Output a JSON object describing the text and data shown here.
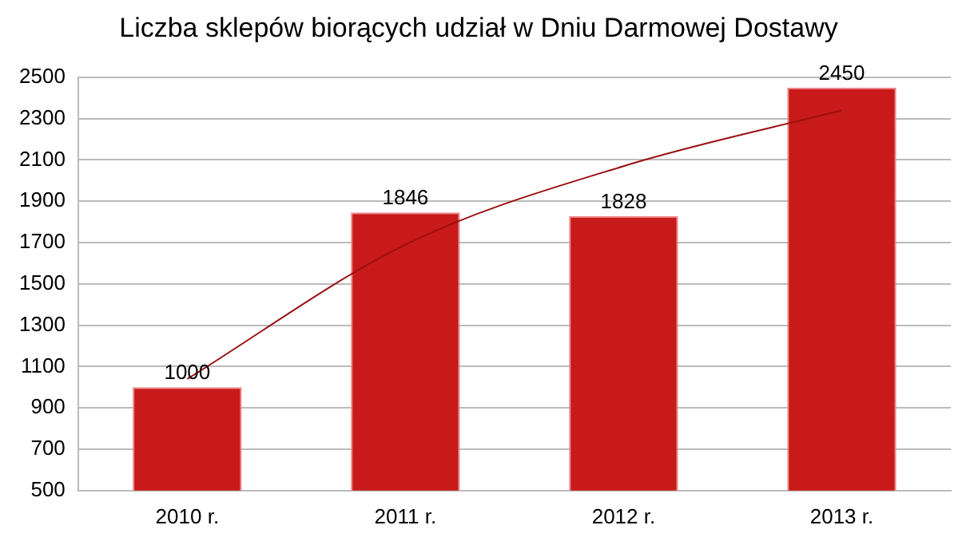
{
  "chart_data": {
    "type": "bar",
    "title": "Liczba sklepów biorących udział w Dniu Darmowej Dostawy",
    "categories": [
      "2010 r.",
      "2011 r.",
      "2012 r.",
      "2013 r."
    ],
    "series": [
      {
        "color": "#c81a1a",
        "values": [
          1000,
          1846,
          1828,
          2450
        ],
        "value_labels": [
          "1000",
          "1846",
          "1828",
          "2450"
        ]
      },
      {
        "type": "line",
        "color": "#9a1010",
        "values": [
          1040,
          1690,
          2070,
          2340
        ]
      }
    ],
    "ylim": [
      500,
      2500
    ],
    "yticks": [
      500,
      700,
      900,
      1100,
      1300,
      1500,
      1700,
      1900,
      2100,
      2300,
      2500
    ],
    "grid": "y",
    "legend": false,
    "marker": "none"
  }
}
